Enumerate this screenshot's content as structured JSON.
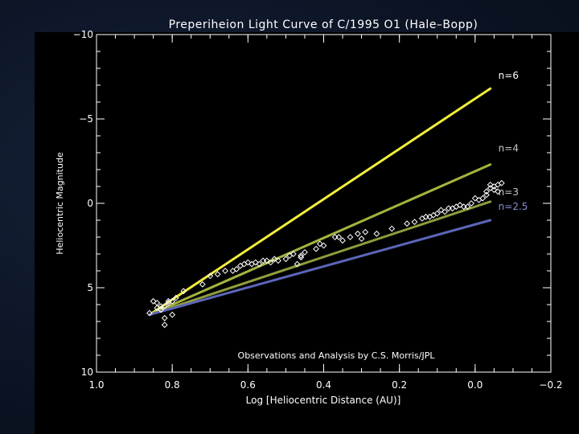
{
  "chart_data": {
    "type": "scatter",
    "title": "Preperiheion Light Curve of C/1995 O1 (Hale–Bopp)",
    "xlabel": "Log [Heliocentric Distance (AU)]",
    "ylabel": "Heliocentric Magnitude",
    "xlim": [
      1.0,
      -0.2
    ],
    "ylim": [
      10,
      -10
    ],
    "x_ticks": [
      1.0,
      0.8,
      0.6,
      0.4,
      0.2,
      0.0,
      -0.2
    ],
    "x_tick_labels": [
      "1.0",
      "0.8",
      "0.6",
      "0.4",
      "0.2",
      "0.0",
      "−0.2"
    ],
    "y_ticks": [
      -10,
      -5,
      0,
      5,
      10
    ],
    "y_tick_labels": [
      "−10",
      "−5",
      "0",
      "5",
      "10"
    ],
    "annotation": "Observations and Analysis by C.S. Morris/JPL",
    "background": "#000000",
    "series": [
      {
        "name": "n=6",
        "color": "#f2ee3c",
        "kind": "line",
        "x": [
          0.86,
          -0.04
        ],
        "y": [
          6.6,
          -6.8
        ]
      },
      {
        "name": "n=4",
        "color": "#a6b33e",
        "kind": "line",
        "x": [
          0.86,
          -0.04
        ],
        "y": [
          6.6,
          -2.3
        ]
      },
      {
        "name": "n=3",
        "color": "#8f9c3c",
        "kind": "line",
        "x": [
          0.86,
          -0.04
        ],
        "y": [
          6.6,
          -0.1
        ]
      },
      {
        "name": "n=2.5",
        "color": "#5b66b8",
        "kind": "line",
        "x": [
          0.86,
          -0.04
        ],
        "y": [
          6.6,
          1.0
        ]
      },
      {
        "name": "",
        "color": "#ffffff",
        "kind": "points",
        "marker": "diamond",
        "x": [
          0.86,
          0.85,
          0.84,
          0.84,
          0.83,
          0.83,
          0.82,
          0.82,
          0.81,
          0.8,
          0.79,
          0.77,
          0.72,
          0.7,
          0.68,
          0.66,
          0.64,
          0.63,
          0.62,
          0.61,
          0.6,
          0.59,
          0.58,
          0.57,
          0.56,
          0.55,
          0.54,
          0.53,
          0.52,
          0.5,
          0.49,
          0.48,
          0.47,
          0.46,
          0.45,
          0.42,
          0.41,
          0.4,
          0.37,
          0.35,
          0.33,
          0.31,
          0.29,
          0.26,
          0.22,
          0.18,
          0.16,
          0.14,
          0.13,
          0.12,
          0.11,
          0.1,
          0.09,
          0.08,
          0.07,
          0.06,
          0.05,
          0.04,
          0.03,
          0.02,
          0.01,
          0.0,
          -0.01,
          -0.02,
          -0.03,
          -0.03,
          -0.04,
          -0.04,
          -0.05,
          -0.05,
          -0.06,
          -0.06,
          -0.07,
          0.83,
          0.82,
          0.81,
          0.8,
          0.46,
          0.36,
          0.3
        ],
        "y": [
          6.5,
          5.8,
          6.2,
          5.9,
          6.3,
          6.1,
          6.8,
          7.2,
          5.9,
          5.8,
          5.6,
          5.2,
          4.8,
          4.3,
          4.2,
          4.0,
          4.0,
          3.9,
          3.7,
          3.6,
          3.5,
          3.6,
          3.5,
          3.6,
          3.4,
          3.4,
          3.5,
          3.3,
          3.4,
          3.3,
          3.1,
          3.0,
          3.6,
          3.2,
          2.9,
          2.7,
          2.4,
          2.5,
          2.0,
          2.2,
          2.0,
          1.8,
          1.7,
          1.8,
          1.5,
          1.2,
          1.1,
          0.9,
          0.8,
          0.8,
          0.7,
          0.6,
          0.4,
          0.5,
          0.3,
          0.3,
          0.2,
          0.1,
          0.2,
          0.2,
          0.0,
          -0.3,
          -0.2,
          -0.3,
          -0.5,
          -0.7,
          -0.9,
          -1.1,
          -1.0,
          -0.8,
          -1.1,
          -0.7,
          -1.2,
          6.3,
          6.1,
          5.8,
          6.6,
          3.1,
          2.0,
          2.1
        ]
      }
    ]
  }
}
